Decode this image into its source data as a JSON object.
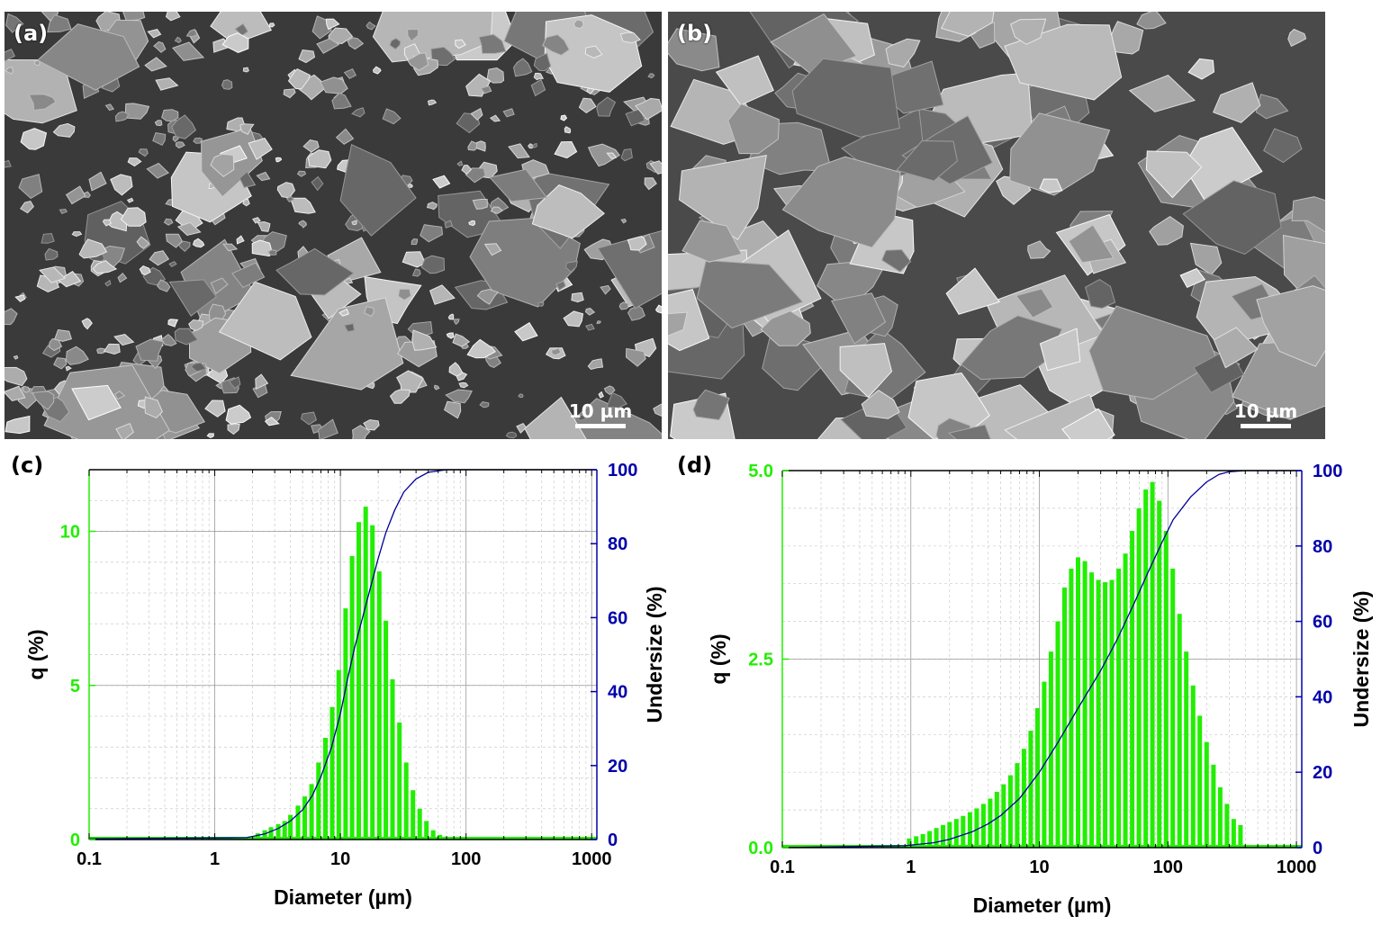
{
  "panels": {
    "a": {
      "label": "(a)",
      "scale_text": "10 µm"
    },
    "b": {
      "label": "(b)",
      "scale_text": "10 µm"
    }
  },
  "colors": {
    "bars": "#22ee00",
    "cumulative": "#000099",
    "left_axis": "#22ee00",
    "right_axis": "#0000aa",
    "grid": "#cccccc"
  },
  "chart_data": [
    {
      "panel": "(c)",
      "type": "bar",
      "x_scale": "log",
      "xlabel": "Diameter (µm)",
      "ylabel_left": "q (%)",
      "ylabel_right": "Undersize (%)",
      "xlim": [
        0.1,
        1100
      ],
      "ylim_left": [
        0,
        12
      ],
      "ylim_right": [
        0,
        100
      ],
      "x_ticks": [
        0.1,
        1,
        10,
        100,
        1000
      ],
      "x_tick_labels": [
        "0.1",
        "1",
        "10",
        "100",
        "1000"
      ],
      "y_ticks_left": [
        0,
        5,
        10
      ],
      "y_tick_labels_left": [
        "0",
        "5",
        "10"
      ],
      "y_ticks_right": [
        0,
        20,
        40,
        60,
        80,
        100
      ],
      "y_tick_labels_right": [
        "0",
        "20",
        "40",
        "60",
        "80",
        "100"
      ],
      "grid": true,
      "series": [
        {
          "kind": "bar",
          "x": [
            1.9,
            2.2,
            2.5,
            2.8,
            3.2,
            3.6,
            4.0,
            4.6,
            5.2,
            5.9,
            6.7,
            7.6,
            8.6,
            9.7,
            11,
            12.4,
            14,
            15.9,
            18,
            20.4,
            23,
            26,
            29.5,
            33.4,
            37.8,
            42.8,
            48.4,
            54.8,
            62
          ],
          "values": [
            0.1,
            0.2,
            0.3,
            0.4,
            0.5,
            0.6,
            0.8,
            1.1,
            1.4,
            1.8,
            2.5,
            3.3,
            4.3,
            5.5,
            7.5,
            9.2,
            10.3,
            10.8,
            10.2,
            8.7,
            7.1,
            5.2,
            3.8,
            2.5,
            1.6,
            1.0,
            0.6,
            0.3,
            0.15
          ]
        },
        {
          "kind": "line",
          "x": [
            0.1,
            1.8,
            2.5,
            3.2,
            4.0,
            5.0,
            6.0,
            7.0,
            8.5,
            10,
            11.5,
            13,
            15,
            17,
            20,
            23,
            27,
            32,
            40,
            50,
            70,
            100,
            1000
          ],
          "values": [
            0.2,
            0.5,
            1.5,
            3,
            5,
            8,
            12,
            17,
            25,
            34,
            44,
            52,
            60,
            67,
            76,
            83,
            89,
            94,
            97.5,
            99.3,
            100,
            100,
            100
          ]
        }
      ]
    },
    {
      "panel": "(d)",
      "type": "bar",
      "x_scale": "log",
      "xlabel": "Diameter (µm)",
      "ylabel_left": "q (%)",
      "ylabel_right": "Undersize (%)",
      "xlim": [
        0.1,
        1100
      ],
      "ylim_left": [
        0,
        5
      ],
      "ylim_right": [
        0,
        100
      ],
      "x_ticks": [
        0.1,
        1,
        10,
        100,
        1000
      ],
      "x_tick_labels": [
        "0.1",
        "1",
        "10",
        "100",
        "1000"
      ],
      "y_ticks_left": [
        0,
        2.5,
        5
      ],
      "y_tick_labels_left": [
        "0.0",
        "2.5",
        "5.0"
      ],
      "y_ticks_right": [
        0,
        20,
        40,
        60,
        80,
        100
      ],
      "y_tick_labels_right": [
        "0",
        "20",
        "40",
        "60",
        "80",
        "100"
      ],
      "grid": true,
      "series": [
        {
          "kind": "bar",
          "x": [
            0.97,
            1.1,
            1.24,
            1.4,
            1.58,
            1.78,
            2.0,
            2.26,
            2.55,
            2.88,
            3.25,
            3.67,
            4.14,
            4.67,
            5.27,
            5.95,
            6.72,
            7.58,
            8.56,
            9.66,
            10.9,
            12.3,
            13.9,
            15.7,
            17.7,
            20,
            22.6,
            25.5,
            28.8,
            32.5,
            36.6,
            41.4,
            46.7,
            52.7,
            59.5,
            67.2,
            75.8,
            85.6,
            96.6,
            109,
            123,
            139,
            157,
            177,
            200,
            226,
            255,
            288,
            325,
            367
          ],
          "values": [
            0.12,
            0.15,
            0.18,
            0.22,
            0.26,
            0.3,
            0.34,
            0.38,
            0.42,
            0.47,
            0.52,
            0.58,
            0.65,
            0.74,
            0.84,
            0.96,
            1.12,
            1.31,
            1.55,
            1.85,
            2.2,
            2.6,
            3.0,
            3.45,
            3.7,
            3.85,
            3.8,
            3.65,
            3.55,
            3.52,
            3.55,
            3.7,
            3.9,
            4.2,
            4.5,
            4.75,
            4.85,
            4.6,
            4.2,
            3.7,
            3.1,
            2.6,
            2.15,
            1.75,
            1.4,
            1.1,
            0.8,
            0.58,
            0.38,
            0.3
          ]
        },
        {
          "kind": "line",
          "x": [
            0.1,
            0.9,
            1.5,
            2,
            3,
            4,
            5,
            7,
            10,
            14,
            20,
            30,
            40,
            55,
            70,
            90,
            110,
            150,
            200,
            250,
            300,
            400,
            1000
          ],
          "values": [
            0,
            0.5,
            1.3,
            2.2,
            4.2,
            6.3,
            8.5,
            13,
            20,
            28,
            37,
            47,
            55,
            65,
            73,
            81,
            87,
            93,
            97,
            99,
            99.7,
            100,
            100
          ]
        }
      ]
    }
  ]
}
